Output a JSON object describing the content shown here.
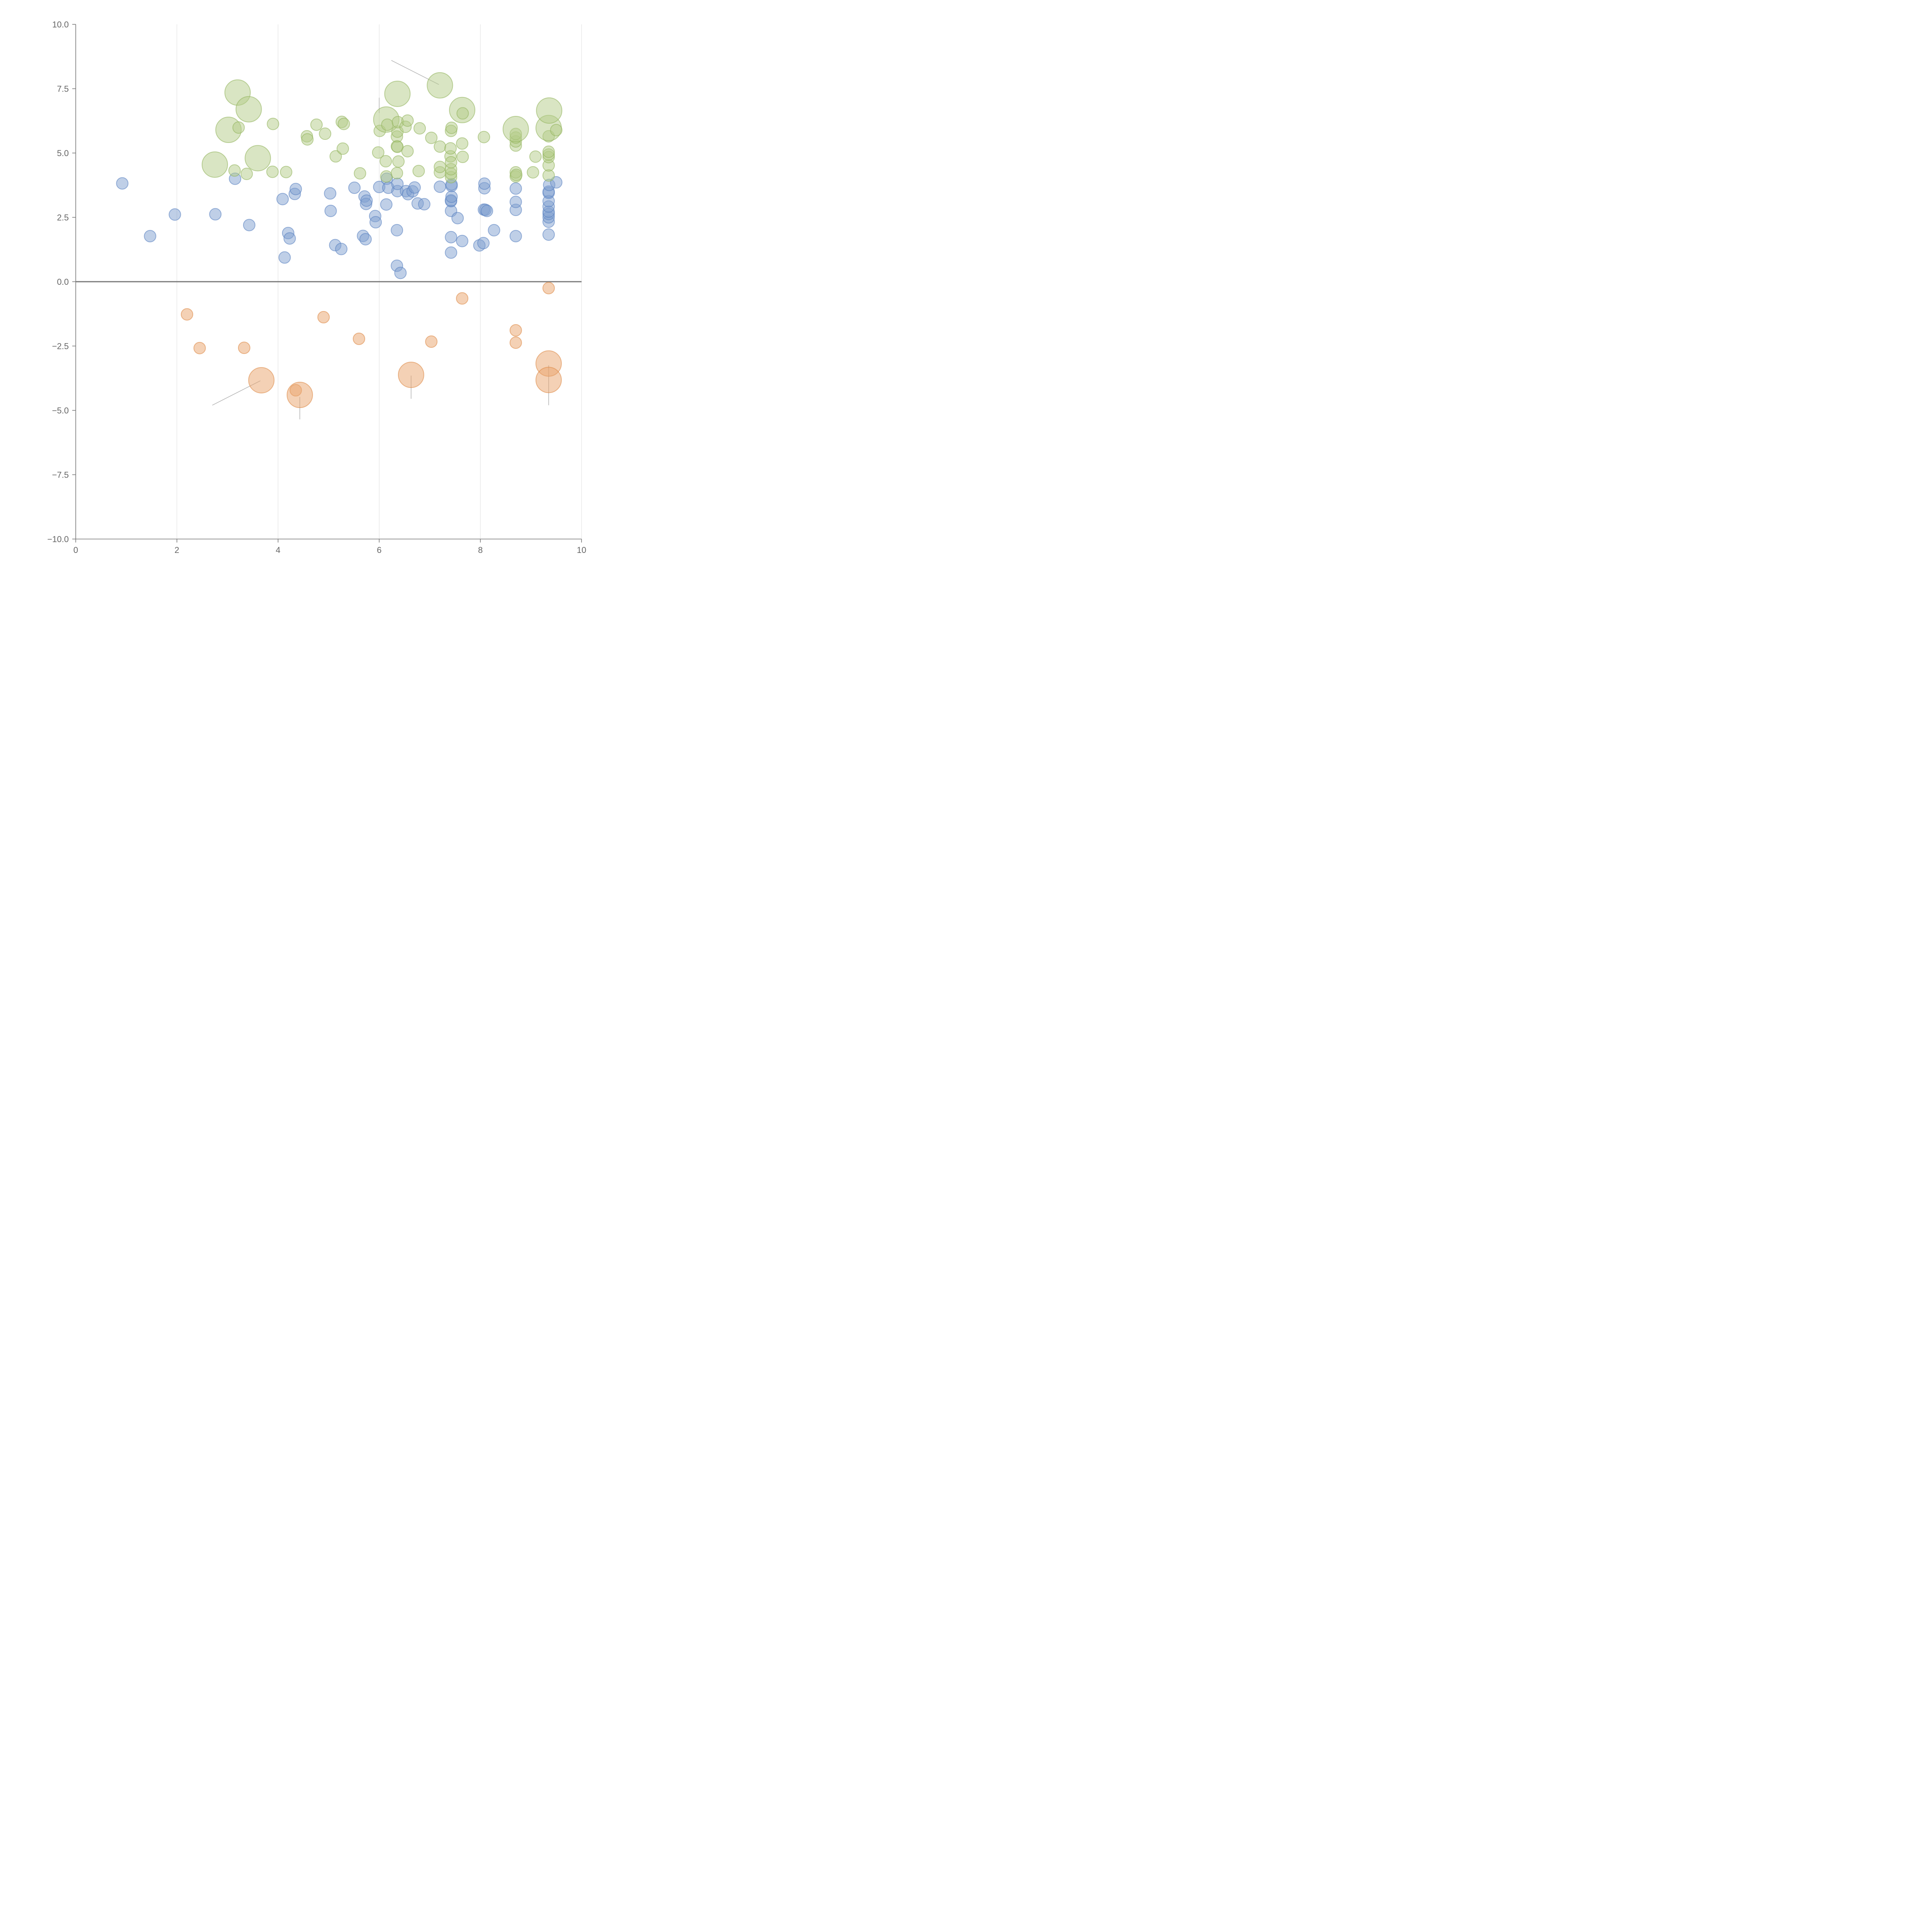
{
  "chart_data": {
    "type": "scatter",
    "title": "",
    "xlabel": "",
    "ylabel": "",
    "xlim": [
      0,
      10
    ],
    "ylim": [
      -10,
      10
    ],
    "x_ticks": [
      0,
      2,
      4,
      6,
      8,
      10
    ],
    "y_ticks": [
      -10,
      -7.5,
      -5,
      -2.5,
      0,
      2.5,
      5,
      7.5,
      10
    ],
    "x_tick_labels": [
      "0",
      "2",
      "4",
      "6",
      "8",
      "10"
    ],
    "y_tick_labels": [
      "−10.0",
      "−7.5",
      "−5.0",
      "−2.5",
      "0.0",
      "2.5",
      "5.0",
      "7.5",
      "10.0"
    ],
    "grid": "vertical",
    "reference_line_y": 0,
    "colors": {
      "blue_fill": "#7f9fd0",
      "blue_stroke": "#5a82c2",
      "green_fill": "#b3cc87",
      "green_stroke": "#93b45d",
      "orange_fill": "#eaa46c",
      "orange_stroke": "#de8a48"
    },
    "series": [
      {
        "color": "blue",
        "points": [
          [
            0.92,
            3.82,
            1
          ],
          [
            1.47,
            1.77,
            1
          ],
          [
            1.96,
            2.61,
            1
          ],
          [
            2.76,
            2.62,
            1
          ],
          [
            3.15,
            4.0,
            1
          ],
          [
            3.43,
            2.2,
            1
          ],
          [
            4.09,
            3.21,
            1
          ],
          [
            4.13,
            0.94,
            1
          ],
          [
            4.2,
            1.89,
            1
          ],
          [
            4.23,
            1.68,
            1
          ],
          [
            4.33,
            3.41,
            1
          ],
          [
            4.35,
            3.6,
            1
          ],
          [
            5.03,
            3.43,
            1
          ],
          [
            5.04,
            2.75,
            1
          ],
          [
            5.13,
            1.42,
            1
          ],
          [
            5.25,
            1.27,
            1
          ],
          [
            5.51,
            3.65,
            1
          ],
          [
            5.68,
            1.78,
            1
          ],
          [
            5.71,
            3.31,
            1
          ],
          [
            5.73,
            1.65,
            1
          ],
          [
            5.74,
            3.02,
            1
          ],
          [
            5.75,
            3.15,
            1
          ],
          [
            5.92,
            2.55,
            1
          ],
          [
            5.93,
            2.31,
            1
          ],
          [
            6.0,
            3.68,
            1
          ],
          [
            6.14,
            3.0,
            1
          ],
          [
            6.15,
            4.0,
            1
          ],
          [
            6.18,
            3.65,
            1
          ],
          [
            6.35,
            0.62,
            1
          ],
          [
            6.35,
            2.0,
            1
          ],
          [
            6.36,
            3.52,
            1
          ],
          [
            6.36,
            3.8,
            1
          ],
          [
            6.42,
            0.34,
            1
          ],
          [
            6.53,
            3.52,
            1
          ],
          [
            6.57,
            3.4,
            1
          ],
          [
            6.66,
            3.51,
            1
          ],
          [
            6.7,
            3.66,
            1
          ],
          [
            6.76,
            3.04,
            1
          ],
          [
            6.89,
            3.01,
            1
          ],
          [
            7.2,
            3.69,
            1
          ],
          [
            7.42,
            1.13,
            1
          ],
          [
            7.42,
            1.73,
            1
          ],
          [
            7.42,
            2.75,
            1
          ],
          [
            7.42,
            3.13,
            1
          ],
          [
            7.42,
            3.16,
            1
          ],
          [
            7.43,
            3.3,
            1
          ],
          [
            7.43,
            3.72,
            1
          ],
          [
            7.43,
            3.78,
            1
          ],
          [
            7.55,
            2.47,
            1
          ],
          [
            7.64,
            1.58,
            1
          ],
          [
            7.98,
            1.41,
            1
          ],
          [
            8.06,
            1.5,
            1
          ],
          [
            8.07,
            2.8,
            1
          ],
          [
            8.08,
            3.63,
            1
          ],
          [
            8.08,
            3.81,
            1
          ],
          [
            8.1,
            2.79,
            1
          ],
          [
            8.13,
            2.75,
            1
          ],
          [
            8.27,
            2.0,
            1
          ],
          [
            8.7,
            1.77,
            1
          ],
          [
            8.7,
            2.79,
            1
          ],
          [
            8.7,
            3.1,
            1
          ],
          [
            8.7,
            3.62,
            1
          ],
          [
            9.35,
            1.83,
            1
          ],
          [
            9.35,
            2.33,
            1
          ],
          [
            9.35,
            2.5,
            1
          ],
          [
            9.35,
            2.63,
            1
          ],
          [
            9.35,
            2.72,
            1
          ],
          [
            9.35,
            2.92,
            1
          ],
          [
            9.35,
            3.13,
            1
          ],
          [
            9.35,
            3.45,
            1
          ],
          [
            9.35,
            3.5,
            1
          ],
          [
            9.36,
            3.76,
            1
          ],
          [
            9.5,
            3.86,
            1
          ]
        ]
      },
      {
        "color": "green",
        "points": [
          [
            2.75,
            4.55,
            2.2
          ],
          [
            3.02,
            5.9,
            2.2
          ],
          [
            3.14,
            4.32,
            1
          ],
          [
            3.2,
            7.35,
            2.2
          ],
          [
            3.22,
            5.99,
            1
          ],
          [
            3.38,
            4.19,
            1
          ],
          [
            3.42,
            6.7,
            2.2
          ],
          [
            3.6,
            4.8,
            2.2
          ],
          [
            3.89,
            4.27,
            1
          ],
          [
            3.9,
            6.13,
            1
          ],
          [
            4.16,
            4.26,
            1
          ],
          [
            4.57,
            5.65,
            1
          ],
          [
            4.58,
            5.53,
            1
          ],
          [
            4.76,
            6.1,
            1
          ],
          [
            4.93,
            5.75,
            1
          ],
          [
            5.14,
            4.87,
            1
          ],
          [
            5.26,
            6.21,
            1
          ],
          [
            5.28,
            5.17,
            1
          ],
          [
            5.3,
            6.13,
            1
          ],
          [
            5.62,
            4.21,
            1
          ],
          [
            5.98,
            5.02,
            1
          ],
          [
            6.01,
            5.86,
            1
          ],
          [
            6.13,
            4.68,
            1
          ],
          [
            6.14,
            4.09,
            1
          ],
          [
            6.14,
            6.3,
            2.2
          ],
          [
            6.16,
            6.1,
            1
          ],
          [
            6.35,
            4.22,
            1
          ],
          [
            6.35,
            5.26,
            1
          ],
          [
            6.35,
            5.64,
            1
          ],
          [
            6.36,
            5.24,
            1
          ],
          [
            6.36,
            5.83,
            1
          ],
          [
            6.36,
            7.3,
            2.2
          ],
          [
            6.37,
            6.2,
            1
          ],
          [
            6.38,
            4.67,
            1
          ],
          [
            6.52,
            6.02,
            1
          ],
          [
            6.56,
            5.07,
            1
          ],
          [
            6.56,
            6.26,
            1
          ],
          [
            6.78,
            4.3,
            1
          ],
          [
            6.8,
            5.96,
            1
          ],
          [
            7.03,
            5.59,
            1
          ],
          [
            7.2,
            4.25,
            1
          ],
          [
            7.2,
            4.46,
            1
          ],
          [
            7.2,
            5.25,
            1
          ],
          [
            7.2,
            7.63,
            2.2
          ],
          [
            7.41,
            4.87,
            1
          ],
          [
            7.41,
            5.18,
            1
          ],
          [
            7.42,
            4.06,
            1
          ],
          [
            7.42,
            4.2,
            1
          ],
          [
            7.42,
            4.37,
            1
          ],
          [
            7.42,
            4.64,
            1
          ],
          [
            7.42,
            5.86,
            1
          ],
          [
            7.43,
            5.98,
            1
          ],
          [
            7.64,
            5.37,
            1
          ],
          [
            7.64,
            6.67,
            2.2
          ],
          [
            7.65,
            4.85,
            1
          ],
          [
            7.65,
            6.54,
            1
          ],
          [
            8.07,
            5.62,
            1
          ],
          [
            8.7,
            4.09,
            1
          ],
          [
            8.7,
            4.25,
            1
          ],
          [
            8.7,
            5.29,
            1
          ],
          [
            8.7,
            5.45,
            1
          ],
          [
            8.7,
            5.6,
            1
          ],
          [
            8.7,
            5.74,
            1
          ],
          [
            8.7,
            5.93,
            2.2
          ],
          [
            8.71,
            4.15,
            1
          ],
          [
            9.04,
            4.25,
            1
          ],
          [
            9.09,
            4.86,
            1
          ],
          [
            9.35,
            4.13,
            1
          ],
          [
            9.35,
            4.52,
            1
          ],
          [
            9.35,
            4.84,
            1
          ],
          [
            9.35,
            4.94,
            1
          ],
          [
            9.35,
            5.05,
            1
          ],
          [
            9.35,
            5.65,
            1
          ],
          [
            9.35,
            5.97,
            2.2
          ],
          [
            9.36,
            6.65,
            2.2
          ],
          [
            9.5,
            5.89,
            1
          ]
        ]
      },
      {
        "color": "orange",
        "points": [
          [
            2.2,
            -1.27,
            1
          ],
          [
            2.45,
            -2.58,
            1
          ],
          [
            3.33,
            -2.57,
            1
          ],
          [
            3.67,
            -3.83,
            2.2
          ],
          [
            4.35,
            -4.22,
            1
          ],
          [
            4.43,
            -4.4,
            2.2
          ],
          [
            4.9,
            -1.38,
            1
          ],
          [
            5.6,
            -2.22,
            1
          ],
          [
            6.63,
            -3.62,
            2.2
          ],
          [
            7.03,
            -2.33,
            1
          ],
          [
            7.64,
            -0.65,
            1
          ],
          [
            8.7,
            -1.89,
            1
          ],
          [
            8.7,
            -2.37,
            1
          ],
          [
            9.35,
            -0.25,
            1
          ],
          [
            9.35,
            -3.18,
            2.2
          ],
          [
            9.35,
            -3.82,
            2.2
          ]
        ]
      }
    ],
    "leader_lines": [
      [
        [
          6.24,
          8.6
        ],
        [
          7.18,
          7.66
        ]
      ],
      [
        [
          2.7,
          -4.8
        ],
        [
          3.65,
          -3.85
        ]
      ],
      [
        [
          4.43,
          -4.48
        ],
        [
          4.43,
          -5.35
        ]
      ],
      [
        [
          6.63,
          -3.65
        ],
        [
          6.63,
          -4.55
        ]
      ],
      [
        [
          9.35,
          -3.25
        ],
        [
          9.35,
          -4.8
        ]
      ],
      [
        [
          6.0,
          6.55
        ],
        [
          6.0,
          7.15
        ]
      ]
    ]
  }
}
